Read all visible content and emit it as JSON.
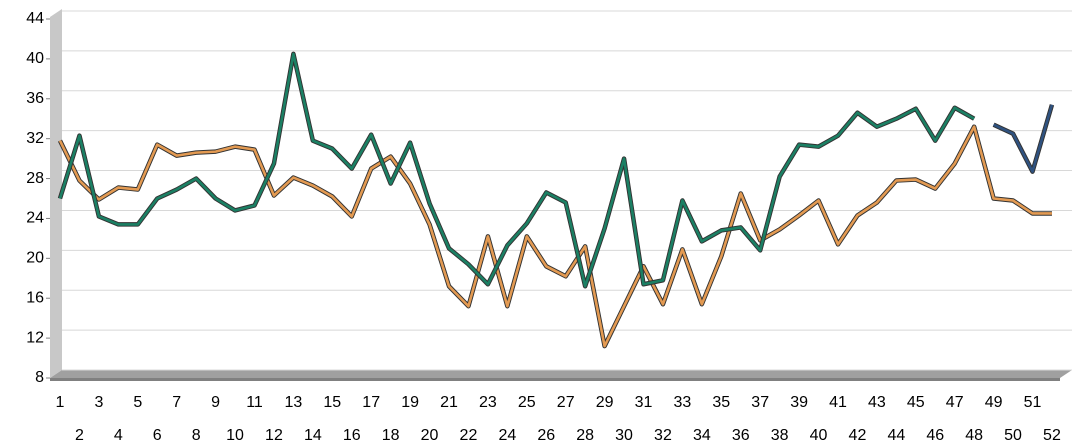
{
  "chart_data": {
    "type": "line",
    "categories": [
      1,
      2,
      3,
      4,
      5,
      6,
      7,
      8,
      9,
      10,
      11,
      12,
      13,
      14,
      15,
      16,
      17,
      18,
      19,
      20,
      21,
      22,
      23,
      24,
      25,
      26,
      27,
      28,
      29,
      30,
      31,
      32,
      33,
      34,
      35,
      36,
      37,
      38,
      39,
      40,
      41,
      42,
      43,
      44,
      45,
      46,
      47,
      48,
      49,
      50,
      51,
      52
    ],
    "series": [
      {
        "color": "#e39a52",
        "values": [
          31.8,
          27.8,
          25.9,
          27.1,
          26.9,
          31.4,
          30.3,
          30.6,
          30.7,
          31.2,
          30.9,
          26.3,
          28.1,
          27.3,
          26.2,
          24.2,
          29,
          30.2,
          27.5,
          23.4,
          17.2,
          15.2,
          22.2,
          15.2,
          22.2,
          19.2,
          18.2,
          21.2,
          11.2,
          15.2,
          19.2,
          15.4,
          20.9,
          15.4,
          20.2,
          26.5,
          21.8,
          22.9,
          24.3,
          25.8,
          21.4,
          24.3,
          25.6,
          27.8,
          27.9,
          27,
          29.5,
          33.2,
          26,
          25.8,
          24.5,
          24.5
        ]
      },
      {
        "color": "#1b8064",
        "values": [
          26,
          32.3,
          24.2,
          23.4,
          23.4,
          26,
          26.9,
          28,
          26,
          24.8,
          25.3,
          29.5,
          40.5,
          31.8,
          31,
          29,
          32.4,
          27.5,
          31.6,
          25.5,
          21,
          19.4,
          17.4,
          21.3,
          23.5,
          26.6,
          25.6,
          17.2,
          23,
          30,
          17.4,
          17.8,
          25.8,
          21.7,
          22.8,
          23.1,
          20.8,
          28.2,
          31.4,
          31.2,
          32.3,
          34.6,
          33.2,
          34,
          35,
          31.8,
          35.1,
          34,
          null,
          null,
          null,
          null
        ]
      },
      {
        "color": "#2f5280",
        "values": [
          null,
          null,
          null,
          null,
          null,
          null,
          null,
          null,
          null,
          null,
          null,
          null,
          null,
          null,
          null,
          null,
          null,
          null,
          null,
          null,
          null,
          null,
          null,
          null,
          null,
          null,
          null,
          null,
          null,
          null,
          null,
          null,
          null,
          null,
          null,
          null,
          null,
          null,
          null,
          null,
          null,
          null,
          null,
          null,
          null,
          null,
          null,
          null,
          33.4,
          32.5,
          28.7,
          35.4
        ]
      }
    ],
    "ylim": [
      8,
      44
    ],
    "yticks": [
      8,
      12,
      16,
      20,
      24,
      28,
      32,
      36,
      40,
      44
    ],
    "grid": true
  }
}
